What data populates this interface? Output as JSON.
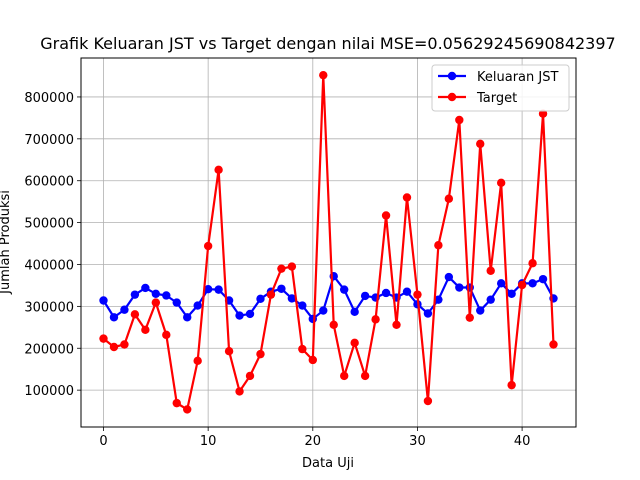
{
  "chart_data": {
    "type": "line",
    "title": "Grafik Keluaran JST vs Target dengan nilai MSE=0.05629245690842397",
    "xlabel": "Data Uji",
    "ylabel": "Jumlah Produksi",
    "xlim": [
      -2.15,
      45.15
    ],
    "ylim": [
      12000,
      893000
    ],
    "xticks": [
      0,
      10,
      20,
      30,
      40
    ],
    "yticks": [
      100000,
      200000,
      300000,
      400000,
      500000,
      600000,
      700000,
      800000
    ],
    "grid": true,
    "legend_position": "top-right",
    "series": [
      {
        "name": "Keluaran JST",
        "color": "#0000ff",
        "values": [
          314000,
          274000,
          292000,
          328000,
          344000,
          330000,
          326000,
          309000,
          274000,
          302000,
          341000,
          340000,
          314000,
          278000,
          282000,
          318000,
          335000,
          342000,
          319000,
          302000,
          270000,
          290000,
          372000,
          340000,
          287000,
          325000,
          321000,
          332000,
          321000,
          335000,
          305000,
          283000,
          316000,
          370000,
          345000,
          345000,
          290000,
          316000,
          355000,
          330000,
          355000,
          355000,
          365000,
          319000
        ]
      },
      {
        "name": "Target",
        "color": "#ff0000",
        "values": [
          223000,
          203000,
          209000,
          281000,
          244000,
          309000,
          232000,
          69000,
          54000,
          170000,
          444000,
          626000,
          193000,
          97000,
          134000,
          186000,
          328000,
          390000,
          395000,
          198000,
          172000,
          852000,
          256000,
          134000,
          213000,
          134000,
          269000,
          517000,
          256000,
          560000,
          328000,
          74000,
          446000,
          557000,
          745000,
          273000,
          688000,
          385000,
          595000,
          112000,
          351000,
          403000,
          760000,
          209000
        ]
      }
    ]
  }
}
